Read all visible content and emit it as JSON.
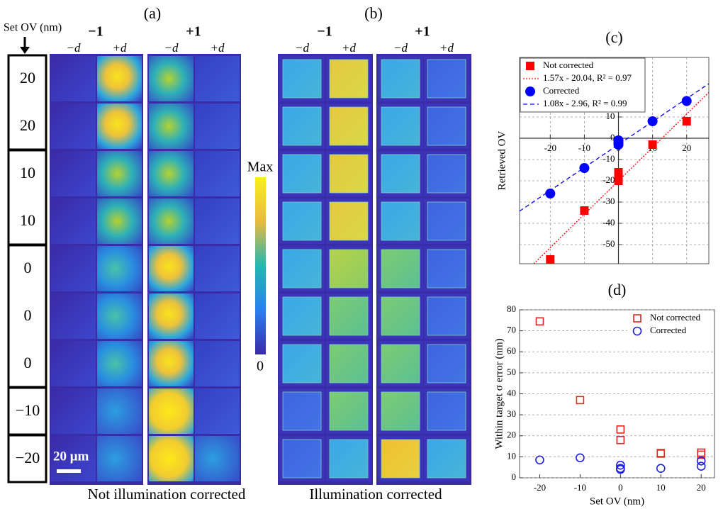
{
  "figure": {
    "set_ov_label": "Set OV (nm)",
    "set_ov_values": [
      "20",
      "20",
      "10",
      "10",
      "0",
      "0",
      "0",
      "−10",
      "−20"
    ],
    "panels": [
      {
        "label": "(a)",
        "caption": "Not illumination corrected",
        "orders": [
          {
            "order": "−1",
            "columns": [
              "−d",
              "+d"
            ]
          },
          {
            "order": "+1",
            "columns": [
              "−d",
              "+d"
            ]
          }
        ]
      },
      {
        "label": "(b)",
        "caption": "Illumination corrected",
        "orders": [
          {
            "order": "−1",
            "columns": [
              "−d",
              "+d"
            ]
          },
          {
            "order": "+1",
            "columns": [
              "−d",
              "+d"
            ]
          }
        ]
      }
    ],
    "colorbar": {
      "max_label": "Max",
      "min_label": "0"
    },
    "scale_bar": "20 μm"
  },
  "chart_data": [
    {
      "type": "scatter",
      "title": "(c)",
      "y_label": "Retrieved OV",
      "xlim": [
        -29,
        26.5
      ],
      "ylim": [
        -59,
        38
      ],
      "xticks": [
        -20,
        -10,
        0,
        10,
        20
      ],
      "yticks": [
        -50,
        -40,
        -30,
        -20,
        -10,
        0,
        10
      ],
      "grid": "both",
      "axes_at_origin": true,
      "legend": "upper left",
      "series": [
        {
          "name": "Not corrected",
          "color": "#ff0000",
          "marker": "square",
          "x": [
            -20,
            -10,
            0,
            0,
            0,
            10,
            20
          ],
          "values": [
            -57,
            -34,
            -16,
            -18,
            -20,
            -3,
            8
          ],
          "fit": {
            "slope": 1.57,
            "intercept": -20.04,
            "label": "1.57x - 20.04, R² = 0.97",
            "dash": "dotted"
          }
        },
        {
          "name": "Corrected",
          "color": "#0000ff",
          "marker": "circle",
          "x": [
            -20,
            -10,
            0,
            0,
            0,
            10,
            20
          ],
          "values": [
            -26,
            -14,
            -1,
            -2,
            -3,
            8,
            17.5
          ],
          "fit": {
            "slope": 1.08,
            "intercept": -2.96,
            "label": "1.08x - 2.96, R² = 0.99",
            "dash": "dashed"
          }
        }
      ]
    },
    {
      "type": "scatter",
      "title": "(d)",
      "x_label": "Set OV (nm)",
      "y_label": "Within target σ error (nm)",
      "xlim": [
        -25,
        23.3
      ],
      "ylim": [
        0,
        80
      ],
      "xticks": [
        -20,
        -10,
        0,
        10,
        20
      ],
      "yticks": [
        0,
        10,
        20,
        30,
        40,
        50,
        60,
        70,
        80
      ],
      "grid": "y",
      "axes_at_origin": false,
      "legend": "upper right",
      "series": [
        {
          "name": "Not corrected",
          "color": "#e8251f",
          "marker": "open-square",
          "x": [
            -20,
            -10,
            0,
            0,
            10,
            10,
            20,
            20
          ],
          "values": [
            74.5,
            37,
            23,
            18,
            11.5,
            11.8,
            12,
            11
          ]
        },
        {
          "name": "Corrected",
          "color": "#1f1fe0",
          "marker": "open-circle",
          "x": [
            -20,
            -10,
            0,
            0,
            0,
            10,
            20,
            20
          ],
          "values": [
            8.5,
            9.5,
            6,
            4.5,
            4,
            4.5,
            8,
            5.5
          ]
        }
      ]
    }
  ]
}
